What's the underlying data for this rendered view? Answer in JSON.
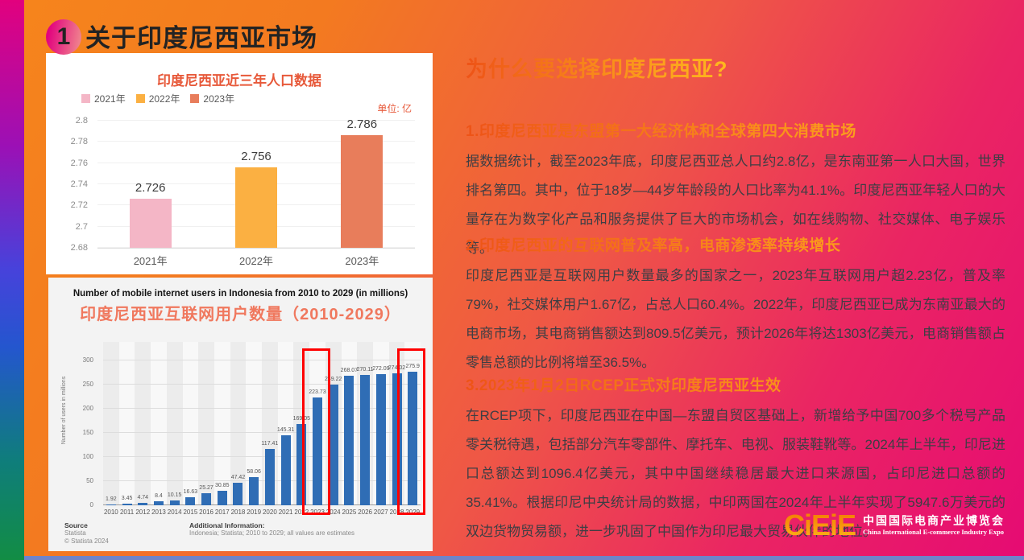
{
  "slide": {
    "number": "1",
    "title": "关于印度尼西亚市场"
  },
  "chart_data": [
    {
      "type": "bar",
      "title": "印度尼西亚近三年人口数据",
      "unit": "单位: 亿",
      "categories": [
        "2021年",
        "2022年",
        "2023年"
      ],
      "values": [
        2.726,
        2.756,
        2.786
      ],
      "colors": [
        "#f4b6c6",
        "#fbb042",
        "#e87d5b"
      ],
      "legend": [
        "2021年",
        "2022年",
        "2023年"
      ],
      "legend_position": "top-left",
      "ylim": [
        2.68,
        2.8
      ],
      "yticks": [
        2.68,
        2.7,
        2.72,
        2.74,
        2.76,
        2.78,
        2.8
      ],
      "grid": true
    },
    {
      "type": "bar",
      "title_en": "Number of mobile internet users in Indonesia from 2010 to 2029 (in millions)",
      "title_zh": "印度尼西亚互联网用户数量（2010-2029）",
      "ylabel": "Number of users in millions",
      "categories": [
        "2010",
        "2011",
        "2012",
        "2013",
        "2014",
        "2015",
        "2016",
        "2017",
        "2018",
        "2019",
        "2020",
        "2021",
        "2022",
        "2023",
        "2024",
        "2025",
        "2026",
        "2027",
        "2028",
        "2029"
      ],
      "values": [
        1.92,
        3.45,
        4.74,
        8.4,
        10.15,
        16.63,
        25.27,
        30.85,
        47.42,
        58.06,
        117.41,
        145.31,
        169.05,
        223.73,
        249.22,
        268.07,
        270.11,
        272.09,
        274.02,
        275.9
      ],
      "bar_color": "#2f6db5",
      "ylim": [
        0,
        300
      ],
      "yticks": [
        0,
        50,
        100,
        150,
        200,
        250,
        300
      ],
      "grid": true,
      "highlighted_categories": [
        "2023",
        "2029"
      ],
      "highlight_color": "#ff0000",
      "source": {
        "label": "Source",
        "name": "Statista",
        "copyright": "© Statista 2024"
      },
      "additional_info": {
        "label": "Additional Information:",
        "text": "Indonesia; Statista; 2010 to 2029; all values are estimates"
      }
    }
  ],
  "right_panel": {
    "heading": "为什么要选择印度尼西亚?",
    "sections": [
      {
        "heading": "1.印度尼西亚是东盟第一大经济体和全球第四大消费市场",
        "body": "据数据统计，截至2023年底，印度尼西亚总人口约2.8亿，是东南亚第一人口大国，世界排名第四。其中，位于18岁—44岁年龄段的人口比率为41.1%。印度尼西亚年轻人口的大量存在为数字化产品和服务提供了巨大的市场机会，如在线购物、社交媒体、电子娱乐等。"
      },
      {
        "heading": "2.印度尼西亚的互联网普及率高，电商渗透率持续增长",
        "body": "印度尼西亚是互联网用户数量最多的国家之一，2023年互联网用户超2.23亿，普及率79%，社交媒体用户1.67亿，占总人口60.4%。2022年，印度尼西亚已成为东南亚最大的电商市场，其电商销售额达到809.5亿美元，预计2026年将达1303亿美元，电商销售额占零售总额的比例将增至36.5%。"
      },
      {
        "heading": "3.2023年1月2日RCEP正式对印度尼西亚生效",
        "body": "在RCEP项下，印度尼西亚在中国—东盟自贸区基础上，新增给予中国700多个税号产品零关税待遇，包括部分汽车零部件、摩托车、电视、服装鞋靴等。2024年上半年，印尼进口总额达到1096.4亿美元，其中中国继续稳居最大进口来源国，占印尼进口总额的35.41%。根据印尼中央统计局的数据，中印两国在2024年上半年实现了5947.6万美元的双边货物贸易额，进一步巩固了中国作为印尼最大贸易伙伴的地位。"
      }
    ]
  },
  "logo": {
    "monogram": "CiEiE",
    "name_zh": "中国国际电商产业博览会",
    "name_en": "China International E-commerce Industry Expo"
  }
}
